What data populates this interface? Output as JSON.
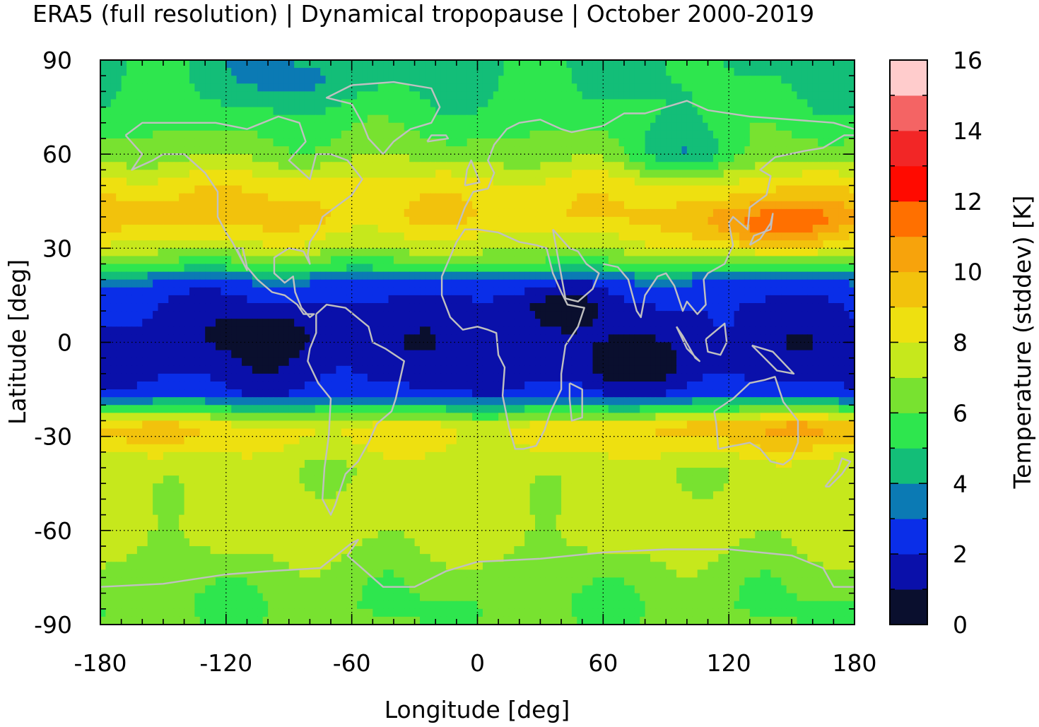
{
  "title": "ERA5 (full resolution) | Dynamical tropopause | October 2000-2019",
  "chart_data": {
    "type": "heatmap",
    "title": "ERA5 (full resolution) | Dynamical tropopause | October 2000-2019",
    "xlabel": "Longitude [deg]",
    "ylabel": "Latitude [deg]",
    "xlim": [
      -180,
      180
    ],
    "ylim": [
      -90,
      90
    ],
    "x_ticks": [
      -180,
      -120,
      -60,
      0,
      60,
      120,
      180
    ],
    "y_ticks": [
      90,
      60,
      30,
      0,
      -30,
      -60,
      -90
    ],
    "grid": true,
    "colorbar": {
      "label": "Temperature (stddev) [K]",
      "range": [
        0,
        16
      ],
      "ticks": [
        0,
        2,
        4,
        6,
        8,
        10,
        12,
        14,
        16
      ],
      "levels": [
        {
          "from": 0,
          "to": 1,
          "color": "#0a0f2e"
        },
        {
          "from": 1,
          "to": 2,
          "color": "#0a10aa"
        },
        {
          "from": 2,
          "to": 3,
          "color": "#0a2ee8"
        },
        {
          "from": 3,
          "to": 4,
          "color": "#0b7ab4"
        },
        {
          "from": 4,
          "to": 5,
          "color": "#13be78"
        },
        {
          "from": 5,
          "to": 6,
          "color": "#2ee64e"
        },
        {
          "from": 6,
          "to": 7,
          "color": "#78e230"
        },
        {
          "from": 7,
          "to": 8,
          "color": "#c6e81c"
        },
        {
          "from": 8,
          "to": 9,
          "color": "#eee010"
        },
        {
          "from": 9,
          "to": 10,
          "color": "#f2c20c"
        },
        {
          "from": 10,
          "to": 11,
          "color": "#f7a30c"
        },
        {
          "from": 11,
          "to": 12,
          "color": "#ff7000"
        },
        {
          "from": 12,
          "to": 13,
          "color": "#ff0a00"
        },
        {
          "from": 13,
          "to": 14,
          "color": "#f22626"
        },
        {
          "from": 14,
          "to": 15,
          "color": "#f46464"
        },
        {
          "from": 15,
          "to": 16,
          "color": "#ffcccc"
        }
      ]
    },
    "zonal_profile": [
      {
        "lat": 90,
        "value": 4.8
      },
      {
        "lat": 80,
        "value": 5.0
      },
      {
        "lat": 70,
        "value": 5.6
      },
      {
        "lat": 60,
        "value": 6.6
      },
      {
        "lat": 50,
        "value": 8.5
      },
      {
        "lat": 40,
        "value": 9.0
      },
      {
        "lat": 30,
        "value": 7.3
      },
      {
        "lat": 24,
        "value": 5.5
      },
      {
        "lat": 20,
        "value": 3.0
      },
      {
        "lat": 12,
        "value": 1.9
      },
      {
        "lat": 0,
        "value": 1.4
      },
      {
        "lat": -10,
        "value": 1.6
      },
      {
        "lat": -17,
        "value": 2.4
      },
      {
        "lat": -22,
        "value": 5.5
      },
      {
        "lat": -27,
        "value": 8.3
      },
      {
        "lat": -32,
        "value": 8.2
      },
      {
        "lat": -40,
        "value": 7.2
      },
      {
        "lat": -50,
        "value": 7.4
      },
      {
        "lat": -58,
        "value": 7.5
      },
      {
        "lat": -65,
        "value": 7.2
      },
      {
        "lat": -75,
        "value": 6.4
      },
      {
        "lat": -85,
        "value": 6.0
      },
      {
        "lat": -90,
        "value": 6.2
      }
    ],
    "features": [
      {
        "lon": -160,
        "lat": 40,
        "value": 9.8
      },
      {
        "lon": -95,
        "lat": 40,
        "value": 9.5
      },
      {
        "lon": 135,
        "lat": 36,
        "value": 11.2
      },
      {
        "lon": 155,
        "lat": 40,
        "value": 9.6
      },
      {
        "lon": -160,
        "lat": -28,
        "value": 9.2
      },
      {
        "lon": 105,
        "lat": -27,
        "value": 9.6
      },
      {
        "lon": 160,
        "lat": -26,
        "value": 9.4
      },
      {
        "lon": -100,
        "lat": 3,
        "value": 0.6
      },
      {
        "lon": 70,
        "lat": -8,
        "value": 0.7
      },
      {
        "lon": 30,
        "lat": 12,
        "value": 0.8
      },
      {
        "lon": 100,
        "lat": 60,
        "value": 4.6
      },
      {
        "lon": -85,
        "lat": 85,
        "value": 3.6
      }
    ]
  }
}
